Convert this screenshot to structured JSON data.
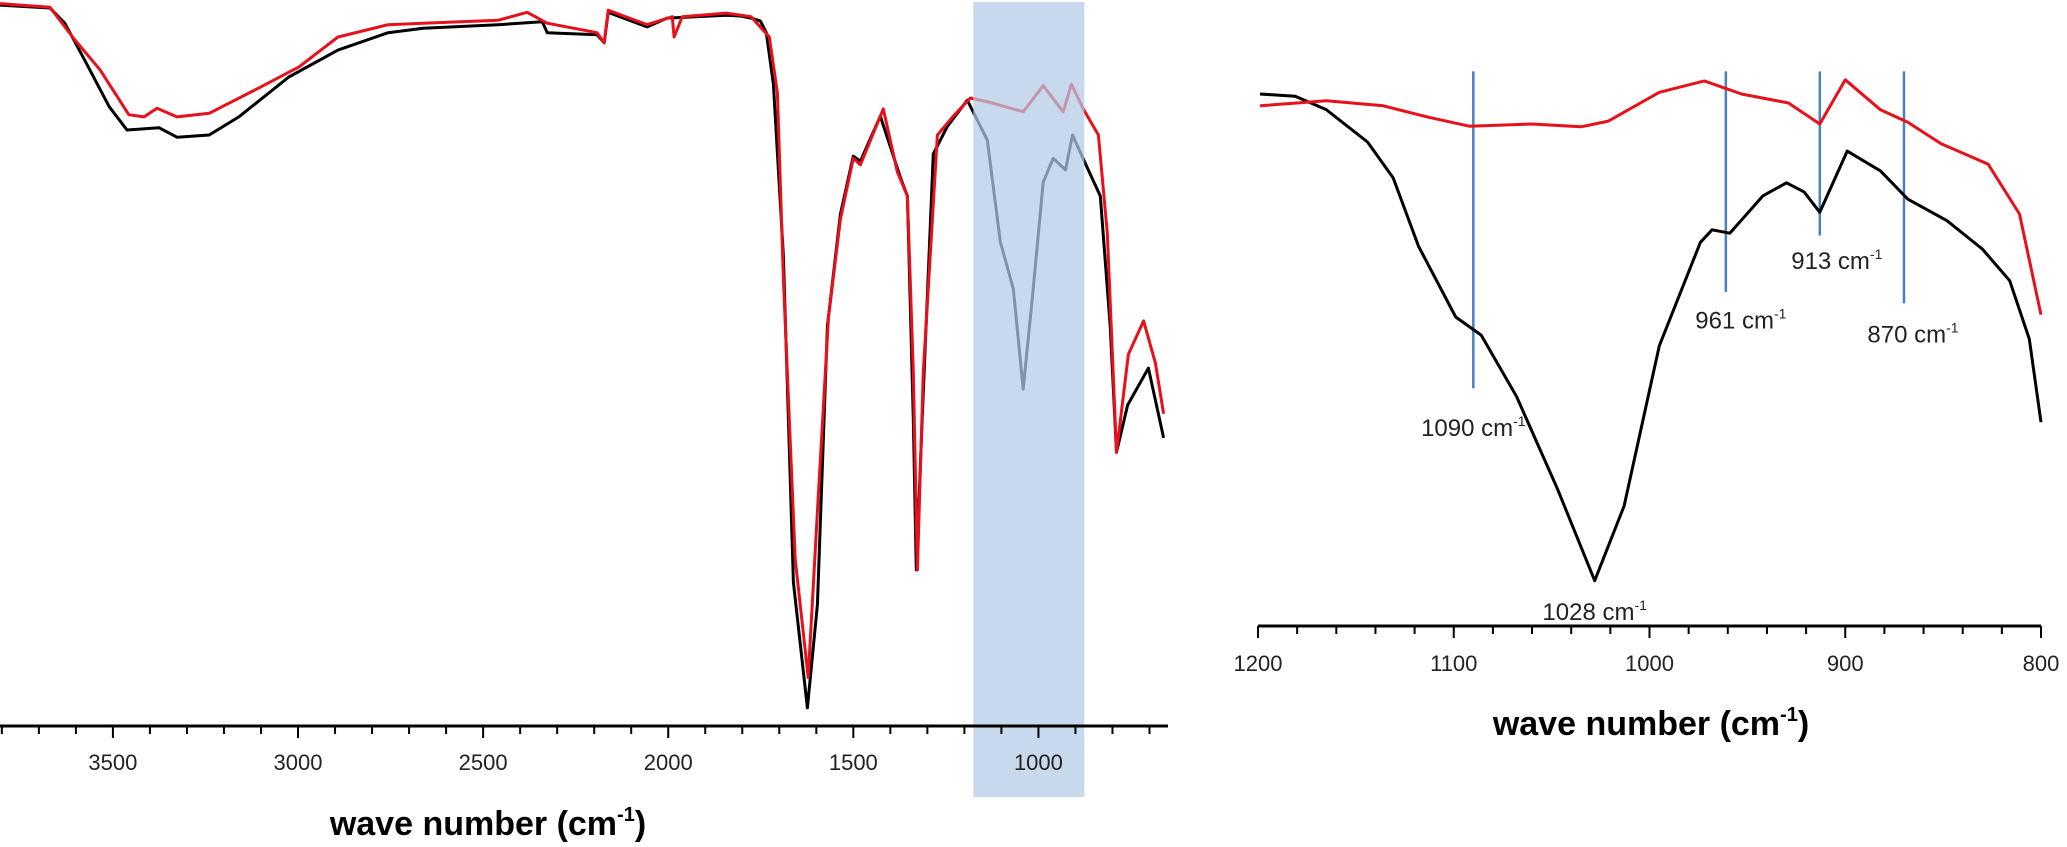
{
  "colors": {
    "series_black": "#000000",
    "series_red": "#e8101a",
    "highlight": "#b4cbe6",
    "peak_line": "#4a7fc0"
  },
  "chart_data": [
    {
      "type": "line",
      "title": "",
      "xlabel": "wave number (cm-1)",
      "xlabel_main": "wave number (cm",
      "xlabel_sup": "-1",
      "xlabel_close": ")",
      "ylabel": "",
      "xlim": [
        3805,
        650
      ],
      "ylim": [
        0,
        100
      ],
      "xticks": [
        3500,
        3000,
        2500,
        2000,
        1500,
        1000
      ],
      "xtick_labels": [
        "3500",
        "3000",
        "2500",
        "2000",
        "1500",
        "1000"
      ],
      "minor_tick_step": 100,
      "grid": false,
      "highlight_region": [
        1176,
        876
      ],
      "series": [
        {
          "name": "black",
          "color": "#000000",
          "x": [
            3805,
            3670,
            3630,
            3576,
            3510,
            3462,
            3375,
            3327,
            3240,
            3160,
            3025,
            2892,
            2757,
            2662,
            2460,
            2340,
            2327,
            2192,
            2173,
            2162,
            2057,
            2003,
            1843,
            1805,
            1776,
            1751,
            1735,
            1716,
            1689,
            1662,
            1624,
            1597,
            1570,
            1535,
            1500,
            1481,
            1427,
            1373,
            1354,
            1338,
            1330,
            1314,
            1284,
            1246,
            1192,
            1138,
            1103,
            1068,
            1041,
            1014,
            987,
            960,
            927,
            908,
            868,
            833,
            806,
            789,
            759,
            703,
            662
          ],
          "y": [
            99.3,
            98.9,
            96.8,
            91.7,
            85.3,
            82.1,
            82.4,
            81.1,
            81.4,
            83.9,
            89.4,
            93.1,
            95.5,
            96.1,
            96.6,
            97.0,
            95.5,
            95.2,
            94.1,
            98.3,
            96.3,
            97.5,
            97.9,
            97.8,
            97.5,
            97.1,
            95.5,
            88.4,
            64.7,
            19.8,
            2.5,
            16.7,
            55.1,
            70.5,
            78.5,
            77.8,
            84.0,
            75.6,
            73.0,
            42.3,
            21.5,
            42.3,
            78.8,
            82.6,
            86.2,
            80.7,
            66.7,
            60.2,
            46.4,
            60.2,
            74.9,
            78.2,
            76.6,
            81.4,
            76.9,
            73.0,
            55.1,
            37.7,
            44.2,
            49.3,
            39.7
          ]
        },
        {
          "name": "red",
          "color": "#e8101a",
          "x": [
            3805,
            3670,
            3603,
            3535,
            3457,
            3416,
            3381,
            3327,
            3240,
            3105,
            2997,
            2892,
            2757,
            2662,
            2460,
            2381,
            2327,
            2192,
            2173,
            2162,
            2057,
            1989,
            1984,
            1962,
            1843,
            1776,
            1727,
            1705,
            1689,
            1657,
            1622,
            1597,
            1567,
            1535,
            1500,
            1481,
            1419,
            1381,
            1354,
            1338,
            1327,
            1311,
            1273,
            1230,
            1184,
            1130,
            1041,
            987,
            933,
            911,
            879,
            838,
            814,
            789,
            757,
            716,
            684,
            662
          ],
          "y": [
            99.5,
            99.0,
            94.5,
            90.4,
            84.2,
            83.9,
            85.1,
            83.9,
            84.4,
            87.9,
            90.8,
            94.9,
            96.6,
            96.8,
            97.2,
            98.3,
            96.8,
            95.5,
            94.1,
            98.6,
            96.6,
            97.7,
            94.9,
            97.7,
            98.2,
            97.7,
            94.9,
            87.2,
            61.6,
            23.0,
            6.7,
            29.5,
            56.3,
            69.8,
            78.2,
            77.3,
            85.0,
            76.3,
            73.0,
            48.8,
            21.5,
            48.8,
            81.4,
            84.0,
            86.5,
            85.9,
            84.6,
            88.2,
            84.6,
            88.4,
            85.0,
            81.4,
            67.9,
            37.7,
            51.2,
            55.8,
            50.0,
            43.0
          ]
        }
      ]
    },
    {
      "type": "line",
      "title": "",
      "xlabel": "wave number (cm-1)",
      "xlabel_main": "wave number (cm",
      "xlabel_sup": "-1",
      "xlabel_close": ")",
      "ylabel": "",
      "xlim": [
        1200,
        800
      ],
      "ylim": [
        0,
        100
      ],
      "xticks": [
        1200,
        1100,
        1000,
        900,
        800
      ],
      "xtick_labels": [
        "1200",
        "1100",
        "1000",
        "900",
        "800"
      ],
      "minor_tick_step": 20,
      "grid": false,
      "annotations": [
        {
          "x": 1090,
          "line_top": 98,
          "line_bottom": 42,
          "text": "1090 cm",
          "sup": "-1",
          "label_y": 35
        },
        {
          "x": 961,
          "line_top": 98,
          "line_bottom": 59,
          "text": "961 cm",
          "sup": "-1",
          "label_y": 54
        },
        {
          "x": 913,
          "line_top": 98,
          "line_bottom": 69,
          "text": "913 cm",
          "sup": "-1",
          "label_y": 64.5
        },
        {
          "x": 870,
          "line_top": 98,
          "line_bottom": 57,
          "text": "870 cm",
          "sup": "-1",
          "label_y": 51.5
        },
        {
          "x": 1028,
          "text": "1028 cm",
          "sup": "-1",
          "label_y": 2.5
        }
      ],
      "series": [
        {
          "name": "black",
          "color": "#000000",
          "x": [
            1199,
            1181,
            1165,
            1144,
            1131,
            1118,
            1099,
            1086,
            1068,
            1047,
            1028,
            1013,
            995,
            974,
            968,
            959,
            942,
            930,
            921,
            913,
            899,
            882,
            868,
            848,
            830,
            816,
            806,
            800
          ],
          "y": [
            94,
            93.6,
            91.2,
            85.5,
            79.2,
            67.1,
            54.6,
            51.4,
            40.6,
            24.2,
            8,
            21.2,
            49.5,
            67.8,
            70,
            69.4,
            76,
            78.3,
            76.7,
            73.1,
            83.9,
            80.4,
            75.4,
            71.6,
            66.6,
            61,
            50.7,
            36
          ]
        },
        {
          "name": "red",
          "color": "#e8101a",
          "x": [
            1199,
            1165,
            1136,
            1113,
            1092,
            1060,
            1035,
            1021,
            995,
            972,
            953,
            929,
            913,
            900,
            882,
            868,
            851,
            827,
            811,
            800
          ],
          "y": [
            91.9,
            92.8,
            91.9,
            89.9,
            88.3,
            88.7,
            88.2,
            89.2,
            94.3,
            96.3,
            94,
            92.4,
            88.7,
            96.5,
            91.2,
            89,
            85.2,
            81.6,
            72.8,
            55
          ]
        }
      ]
    }
  ]
}
